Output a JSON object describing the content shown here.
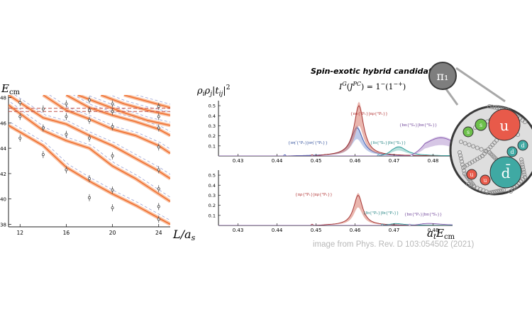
{
  "left_panel": {
    "ylabel": "E_cm",
    "xlabel": "L/a_s",
    "y_ticks": [
      "38",
      "40",
      "42",
      "44",
      "46",
      "48"
    ],
    "x_ticks": [
      "12",
      "16",
      "20",
      "24"
    ]
  },
  "top_panel": {
    "title": "Spin-exotic hybrid candidate",
    "quantum_numbers": "I^G(J^PC) = 1^-(1^-+)",
    "ylabel": "ρ_i ρ_j |t_ij|^2",
    "y_ticks": [
      "0.1",
      "0.2",
      "0.3",
      "0.4",
      "0.5"
    ],
    "x_ticks": [
      "0.43",
      "0.44",
      "0.45",
      "0.46",
      "0.47",
      "0.48"
    ],
    "labels": {
      "blue": "{πηʹ{¹P₁}|πηʹ{³P₁}}",
      "red": "{πρ{³P₁}|πρ{³P₁}}",
      "teal": "{fπ{³S₁}|fπ{³S₁}}",
      "purple": "{bπ{³S₁}|bπ{³S₁}}"
    }
  },
  "bottom_panel": {
    "y_ticks": [
      "0.1",
      "0.2",
      "0.3",
      "0.4",
      "0.5"
    ],
    "x_ticks": [
      "0.43",
      "0.44",
      "0.45",
      "0.46",
      "0.47",
      "0.48"
    ],
    "xlabel": "a_t E_cm",
    "labels": {
      "red": "{πρ{³P₁}|πρ{³P₁}}",
      "teal": "{fπ{³P₁}|fπ{³P₁}}",
      "purple": "{bπ{³P₁}|bπ{³S₁}}"
    }
  },
  "credit": "image from Phys. Rev. D 103:054502 (2021)",
  "hybrid": {
    "label": "π₁",
    "quarks": [
      "u",
      "d̄"
    ],
    "gluons": [
      "s",
      "s",
      "u",
      "u",
      "d",
      "d"
    ]
  },
  "colors": {
    "orange": "#f07030",
    "red_band": "#d97a6c",
    "blue_band": "#8aa0d8",
    "teal": "#2f9a9a",
    "purple": "#8a5fb0",
    "dashed": "#7c84c4"
  },
  "chart_data": [
    {
      "type": "line",
      "panel": "finite-volume spectrum",
      "xlabel": "L/a_s",
      "ylabel": "E_cm",
      "xlim": [
        11,
        25
      ],
      "ylim": [
        37.8,
        48.2
      ],
      "x_ticks": [
        12,
        16,
        20,
        24
      ],
      "y_ticks": [
        38,
        40,
        42,
        44,
        46,
        48
      ],
      "series": [
        {
          "x": [
            11,
            14,
            16,
            18,
            20,
            22,
            24,
            25
          ],
          "values": [
            45.8,
            44.2,
            42.5,
            41.4,
            40.4,
            39.5,
            38.5,
            38.0
          ]
        },
        {
          "x": [
            11,
            14,
            16,
            18,
            20,
            22,
            24,
            25
          ],
          "values": [
            47.4,
            45.4,
            44.6,
            44.0,
            42.6,
            41.6,
            40.4,
            39.8
          ]
        },
        {
          "x": [
            11,
            14,
            16,
            18,
            20,
            22,
            24,
            25
          ],
          "values": [
            48.2,
            46.4,
            45.9,
            45.0,
            44.2,
            43.2,
            42.2,
            41.6
          ]
        },
        {
          "x": [
            14,
            16,
            18,
            20,
            22,
            24,
            25
          ],
          "values": [
            48.2,
            47.0,
            46.3,
            45.5,
            45.0,
            44.2,
            43.6
          ]
        },
        {
          "x": [
            16,
            18,
            20,
            22,
            24,
            25
          ],
          "values": [
            48.2,
            47.2,
            46.6,
            46.1,
            45.5,
            45.0
          ]
        },
        {
          "x": [
            17,
            19,
            21,
            23,
            25
          ],
          "values": [
            48.2,
            47.5,
            46.8,
            46.2,
            45.8
          ]
        },
        {
          "x": [
            19,
            21,
            23,
            25
          ],
          "values": [
            48.2,
            47.5,
            47.0,
            46.6
          ]
        },
        {
          "x": [
            21,
            23,
            25
          ],
          "values": [
            48.2,
            47.7,
            47.2
          ]
        },
        {
          "x": [
            11,
            25
          ],
          "values": [
            46.9,
            46.9
          ]
        },
        {
          "x": [
            11,
            25
          ],
          "values": [
            47.15,
            47.15
          ]
        }
      ],
      "points": [
        {
          "x": 12,
          "y": 44.8
        },
        {
          "x": 12,
          "y": 46.5
        },
        {
          "x": 12,
          "y": 47.6
        },
        {
          "x": 14,
          "y": 43.5
        },
        {
          "x": 14,
          "y": 45.6
        },
        {
          "x": 14,
          "y": 47.1
        },
        {
          "x": 16,
          "y": 42.3
        },
        {
          "x": 16,
          "y": 45.1
        },
        {
          "x": 16,
          "y": 46.5
        },
        {
          "x": 16,
          "y": 47.5
        },
        {
          "x": 18,
          "y": 40.1
        },
        {
          "x": 18,
          "y": 41.6
        },
        {
          "x": 18,
          "y": 44.8
        },
        {
          "x": 18,
          "y": 46.2
        },
        {
          "x": 18,
          "y": 47.0
        },
        {
          "x": 18,
          "y": 47.8
        },
        {
          "x": 20,
          "y": 39.3
        },
        {
          "x": 20,
          "y": 40.7
        },
        {
          "x": 20,
          "y": 43.4
        },
        {
          "x": 20,
          "y": 45.7
        },
        {
          "x": 20,
          "y": 46.9
        },
        {
          "x": 20,
          "y": 47.5
        },
        {
          "x": 24,
          "y": 38.4
        },
        {
          "x": 24,
          "y": 39.4
        },
        {
          "x": 24,
          "y": 40.8
        },
        {
          "x": 24,
          "y": 42.3
        },
        {
          "x": 24,
          "y": 44.1
        },
        {
          "x": 24,
          "y": 45.6
        },
        {
          "x": 24,
          "y": 46.5
        },
        {
          "x": 24,
          "y": 47.3
        }
      ]
    },
    {
      "type": "area",
      "panel": "top",
      "xlim": [
        0.425,
        0.485
      ],
      "ylim": [
        0,
        0.55
      ],
      "series": [
        {
          "color": "blue",
          "center": 0.4605,
          "width": 0.0018,
          "amp": 0.28,
          "onset": 0.442
        },
        {
          "color": "red",
          "center": 0.461,
          "width": 0.0015,
          "amp": 0.5,
          "onset": 0.449
        },
        {
          "color": "teal",
          "center": 0.4712,
          "width": 0.0025,
          "amp": 0.09,
          "onset": 0.466
        },
        {
          "color": "purple",
          "center": 0.482,
          "width": 0.006,
          "amp": 0.18,
          "onset": 0.4745
        }
      ]
    },
    {
      "type": "area",
      "panel": "bottom",
      "xlim": [
        0.425,
        0.485
      ],
      "ylim": [
        0,
        0.55
      ],
      "series": [
        {
          "color": "red",
          "center": 0.4608,
          "width": 0.0014,
          "amp": 0.3,
          "onset": 0.449
        },
        {
          "color": "teal",
          "center": 0.47,
          "width": 0.003,
          "amp": 0.02,
          "onset": 0.467
        },
        {
          "color": "purple",
          "center": 0.479,
          "width": 0.004,
          "amp": 0.02,
          "onset": 0.474
        }
      ]
    }
  ]
}
